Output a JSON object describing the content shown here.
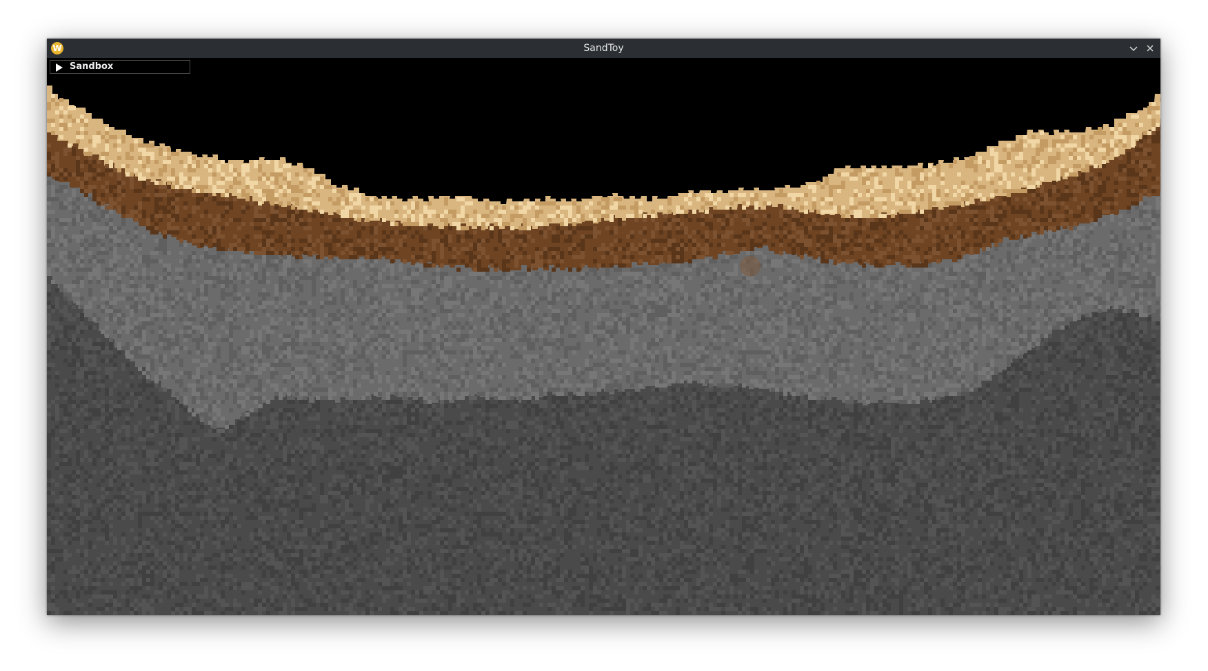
{
  "window": {
    "title": "SandToy",
    "app_icon_letter": "W"
  },
  "panel": {
    "label": "Sandbox",
    "collapsed": true
  },
  "world": {
    "materials": [
      {
        "name": "sand",
        "color": "#d9b57f",
        "color_light": "#f0d7a5",
        "color_dark": "#c49b63"
      },
      {
        "name": "dirt",
        "color": "#6e4422",
        "color_light": "#7d5230",
        "color_dark": "#593519"
      },
      {
        "name": "stone",
        "color": "#6b6b6b",
        "color_light": "#777777",
        "color_dark": "#5f5f5f"
      },
      {
        "name": "bedrock",
        "color": "#4a4a4a",
        "color_light": "#545454",
        "color_dark": "#404040"
      }
    ],
    "background": "#000000"
  }
}
